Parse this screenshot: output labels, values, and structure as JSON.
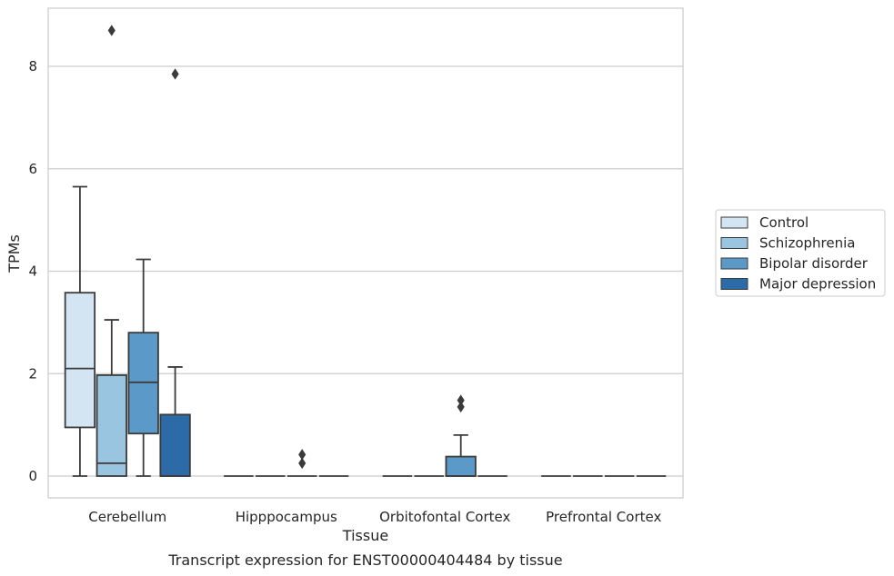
{
  "chart_data": {
    "type": "box",
    "xlabel": "Tissue",
    "ylabel": "TPMs",
    "caption": "Transcript expression for ENST00000404484 by tissue",
    "ylim": [
      -0.4,
      9.2
    ],
    "yticks": [
      0,
      2,
      4,
      6,
      8
    ],
    "grid": "horizontal",
    "legend_position": "right",
    "categories": [
      "Cerebellum",
      "Hipppocampus",
      "Orbitofontal Cortex",
      "Prefrontal Cortex"
    ],
    "series": [
      {
        "name": "Control",
        "color": "#d3e4f3",
        "boxes": [
          {
            "min": 0,
            "q1": 0.95,
            "median": 2.1,
            "q3": 3.58,
            "max": 5.65,
            "outliers": []
          },
          {
            "min": 0,
            "q1": 0,
            "median": 0,
            "q3": 0,
            "max": 0,
            "outliers": []
          },
          {
            "min": 0,
            "q1": 0,
            "median": 0,
            "q3": 0,
            "max": 0,
            "outliers": []
          },
          {
            "min": 0,
            "q1": 0,
            "median": 0,
            "q3": 0,
            "max": 0,
            "outliers": []
          }
        ]
      },
      {
        "name": "Schizophrenia",
        "color": "#99c5e0",
        "boxes": [
          {
            "min": 0,
            "q1": 0,
            "median": 0.25,
            "q3": 1.97,
            "max": 3.05,
            "outliers": [
              8.7
            ]
          },
          {
            "min": 0,
            "q1": 0,
            "median": 0,
            "q3": 0,
            "max": 0,
            "outliers": []
          },
          {
            "min": 0,
            "q1": 0,
            "median": 0,
            "q3": 0,
            "max": 0,
            "outliers": []
          },
          {
            "min": 0,
            "q1": 0,
            "median": 0,
            "q3": 0,
            "max": 0,
            "outliers": []
          }
        ]
      },
      {
        "name": "Bipolar disorder",
        "color": "#5b9ac8",
        "boxes": [
          {
            "min": 0,
            "q1": 0.83,
            "median": 1.83,
            "q3": 2.8,
            "max": 4.23,
            "outliers": []
          },
          {
            "min": 0,
            "q1": 0,
            "median": 0,
            "q3": 0,
            "max": 0,
            "outliers": [
              0.25,
              0.42
            ]
          },
          {
            "min": 0,
            "q1": 0,
            "median": 0,
            "q3": 0.38,
            "max": 0.8,
            "outliers": [
              1.35,
              1.48
            ]
          },
          {
            "min": 0,
            "q1": 0,
            "median": 0,
            "q3": 0,
            "max": 0,
            "outliers": []
          }
        ]
      },
      {
        "name": "Major depression",
        "color": "#2c6aa8",
        "boxes": [
          {
            "min": 0,
            "q1": 0,
            "median": 0,
            "q3": 1.2,
            "max": 2.13,
            "outliers": [
              7.85
            ]
          },
          {
            "min": 0,
            "q1": 0,
            "median": 0,
            "q3": 0,
            "max": 0,
            "outliers": []
          },
          {
            "min": 0,
            "q1": 0,
            "median": 0,
            "q3": 0,
            "max": 0,
            "outliers": []
          },
          {
            "min": 0,
            "q1": 0,
            "median": 0,
            "q3": 0,
            "max": 0,
            "outliers": []
          }
        ]
      }
    ]
  }
}
